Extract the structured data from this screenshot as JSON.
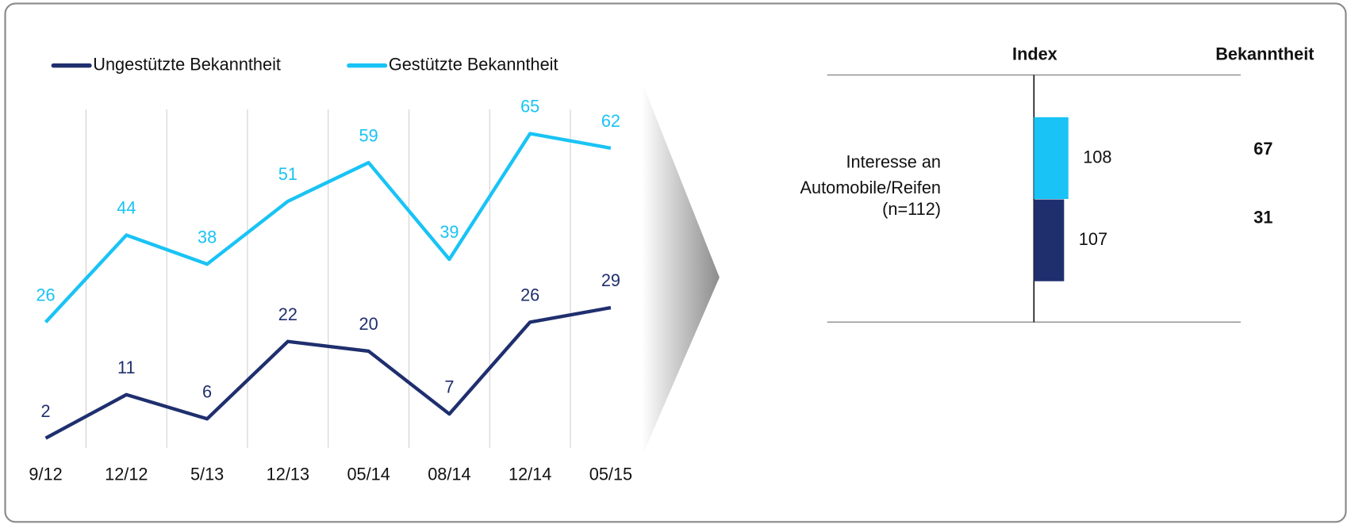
{
  "chart_data": [
    {
      "type": "line",
      "categories": [
        "9/12",
        "12/12",
        "5/13",
        "12/13",
        "05/14",
        "08/14",
        "12/14",
        "05/15"
      ],
      "series": [
        {
          "name": "Ungestützte Bekanntheit",
          "color": "#1f2f6e",
          "values": [
            2,
            11,
            6,
            22,
            20,
            7,
            26,
            29
          ]
        },
        {
          "name": "Gestützte Bekanntheit",
          "color": "#19c3f5",
          "values": [
            26,
            44,
            38,
            51,
            59,
            39,
            65,
            62
          ]
        }
      ],
      "ylim": [
        0,
        70
      ],
      "grid": true,
      "legend": "top"
    },
    {
      "type": "bar",
      "orientation": "horizontal",
      "column_headers": [
        "Index",
        "Bekanntheit"
      ],
      "categories": [
        "Interesse an Automobile/Reifen"
      ],
      "note": "(n=112)",
      "xlim": [
        52,
        148
      ],
      "baseline": 100,
      "series": [
        {
          "color": "#19c3f5",
          "values": [
            108
          ],
          "awareness": [
            67
          ]
        },
        {
          "color": "#1f2f6e",
          "values": [
            107
          ],
          "awareness": [
            31
          ]
        }
      ]
    }
  ]
}
